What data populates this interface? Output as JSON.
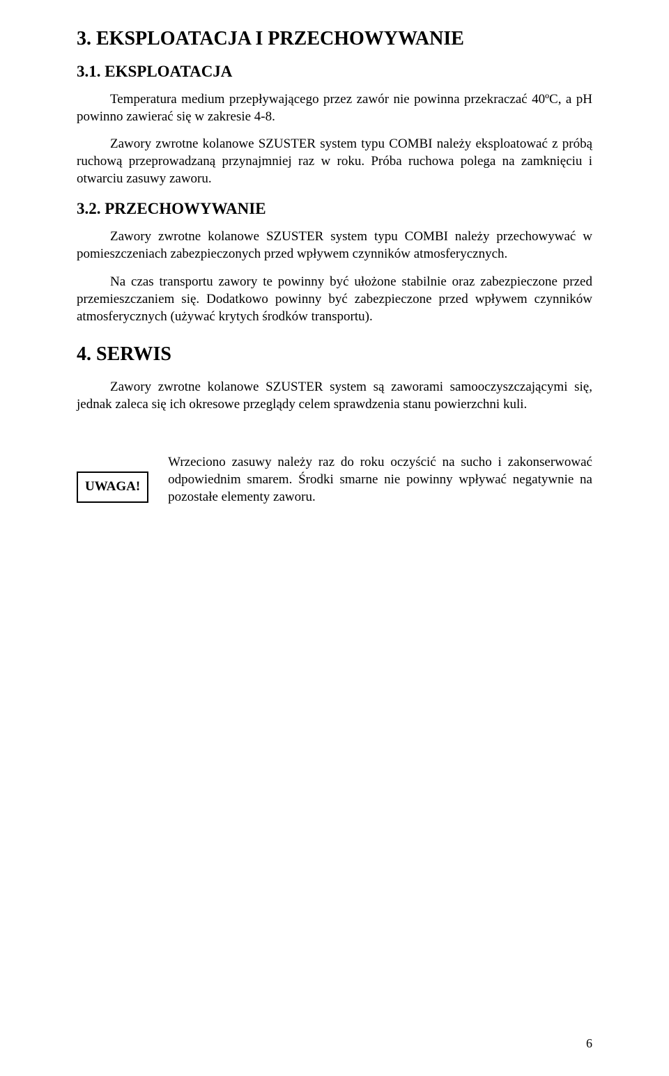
{
  "section3": {
    "title": "3. EKSPLOATACJA I PRZECHOWYWANIE",
    "sub1": {
      "title": "3.1. EKSPLOATACJA",
      "p1": "Temperatura medium przepływającego przez zawór nie powinna przekraczać 40ºC, a pH powinno zawierać się w zakresie 4-8.",
      "p2": "Zawory zwrotne kolanowe SZUSTER system typu COMBI należy eksploatować z próbą ruchową przeprowadzaną przynajmniej raz w roku. Próba ruchowa polega na zamknięciu i otwarciu zasuwy zaworu."
    },
    "sub2": {
      "title": "3.2. PRZECHOWYWANIE",
      "p1": "Zawory zwrotne kolanowe SZUSTER system typu COMBI należy przechowywać w pomieszczeniach zabezpieczonych przed wpływem czynników atmosferycznych.",
      "p2": "Na czas transportu zawory te powinny być ułożone stabilnie oraz zabezpieczone przed przemieszczaniem się. Dodatkowo powinny być zabezpieczone przed wpływem czynników atmosferycznych (używać krytych środków transportu)."
    }
  },
  "section4": {
    "title": "4. SERWIS",
    "p1": "Zawory zwrotne kolanowe SZUSTER system są zaworami samooczyszczającymi się, jednak zaleca się ich okresowe przeglądy celem sprawdzenia stanu powierzchni kuli."
  },
  "uwaga": {
    "label": "UWAGA!",
    "text": "Wrzeciono zasuwy należy raz do roku oczyścić na sucho i zakonserwować odpowiednim smarem. Środki smarne nie powinny wpływać negatywnie na pozostałe elementy zaworu."
  },
  "page_number": "6"
}
